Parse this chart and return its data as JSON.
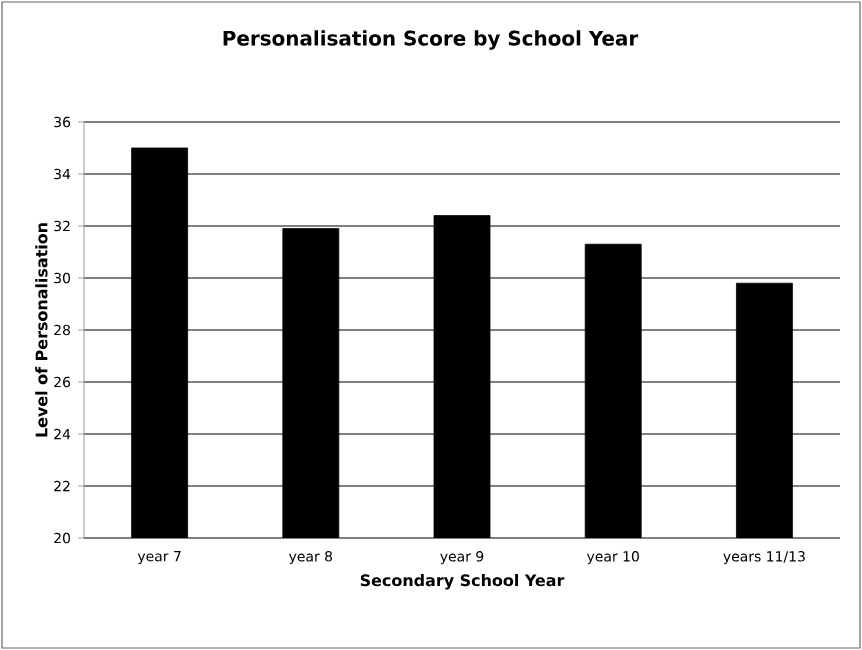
{
  "chart_data": {
    "type": "bar",
    "title": "Personalisation Score by School Year",
    "xlabel": "Secondary School Year",
    "ylabel": "Level of Personalisation",
    "categories": [
      "year 7",
      "year 8",
      "year 9",
      "year 10",
      "years 11/13"
    ],
    "values": [
      35.0,
      31.9,
      32.4,
      31.3,
      29.8
    ],
    "color": "#000000",
    "ylim": [
      20,
      36
    ],
    "yticks": [
      20,
      22,
      24,
      26,
      28,
      30,
      32,
      34,
      36
    ],
    "grid": "y"
  }
}
